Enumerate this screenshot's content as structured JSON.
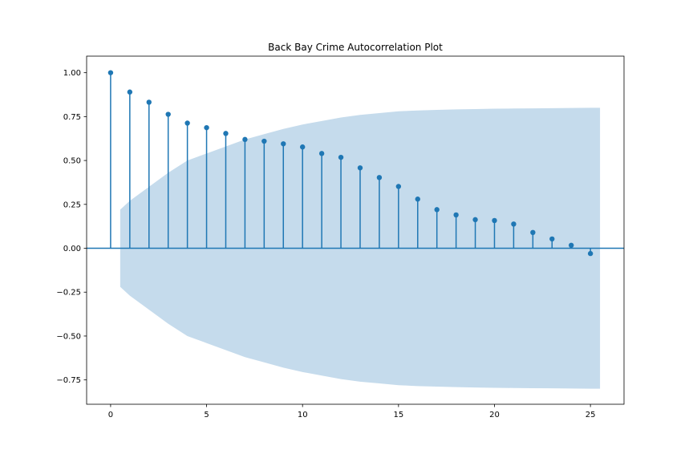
{
  "chart_data": {
    "type": "scatter",
    "title": "Back Bay Crime Autocorrelation Plot",
    "xlabel": "",
    "ylabel": "",
    "xlim": [
      -1.25,
      26.75
    ],
    "ylim": [
      -0.8886,
      1.0944
    ],
    "x_ticks": [
      0,
      5,
      10,
      15,
      20,
      25
    ],
    "x_tick_labels": [
      "0",
      "5",
      "10",
      "15",
      "20",
      "25"
    ],
    "y_ticks": [
      -0.75,
      -0.5,
      -0.25,
      0.0,
      0.25,
      0.5,
      0.75,
      1.0
    ],
    "y_tick_labels": [
      "−0.75",
      "−0.50",
      "−0.25",
      "0.00",
      "0.25",
      "0.50",
      "0.75",
      "1.00"
    ],
    "grid": false,
    "lags": [
      0,
      1,
      2,
      3,
      4,
      5,
      6,
      7,
      8,
      9,
      10,
      11,
      12,
      13,
      14,
      15,
      16,
      17,
      18,
      19,
      20,
      21,
      22,
      23,
      24,
      25
    ],
    "values": [
      1.0,
      0.89,
      0.832,
      0.763,
      0.713,
      0.687,
      0.654,
      0.62,
      0.61,
      0.595,
      0.577,
      0.54,
      0.518,
      0.458,
      0.403,
      0.352,
      0.28,
      0.22,
      0.19,
      0.163,
      0.158,
      0.138,
      0.09,
      0.053,
      0.017,
      -0.03
    ],
    "confidence_band": {
      "x": [
        0.5,
        1,
        2,
        3,
        4,
        5,
        6,
        7,
        8,
        9,
        10,
        11,
        12,
        13,
        14,
        15,
        16,
        17,
        18,
        19,
        20,
        21,
        22,
        23,
        24,
        25,
        25.5
      ],
      "upper": [
        0.22,
        0.27,
        0.35,
        0.43,
        0.5,
        0.54,
        0.58,
        0.62,
        0.65,
        0.68,
        0.705,
        0.725,
        0.745,
        0.76,
        0.77,
        0.78,
        0.785,
        0.788,
        0.791,
        0.793,
        0.795,
        0.796,
        0.797,
        0.798,
        0.799,
        0.8,
        0.8
      ]
    },
    "colors": {
      "points": "#1f77b4",
      "band": "#c5dbec",
      "axis": "#000000"
    }
  }
}
